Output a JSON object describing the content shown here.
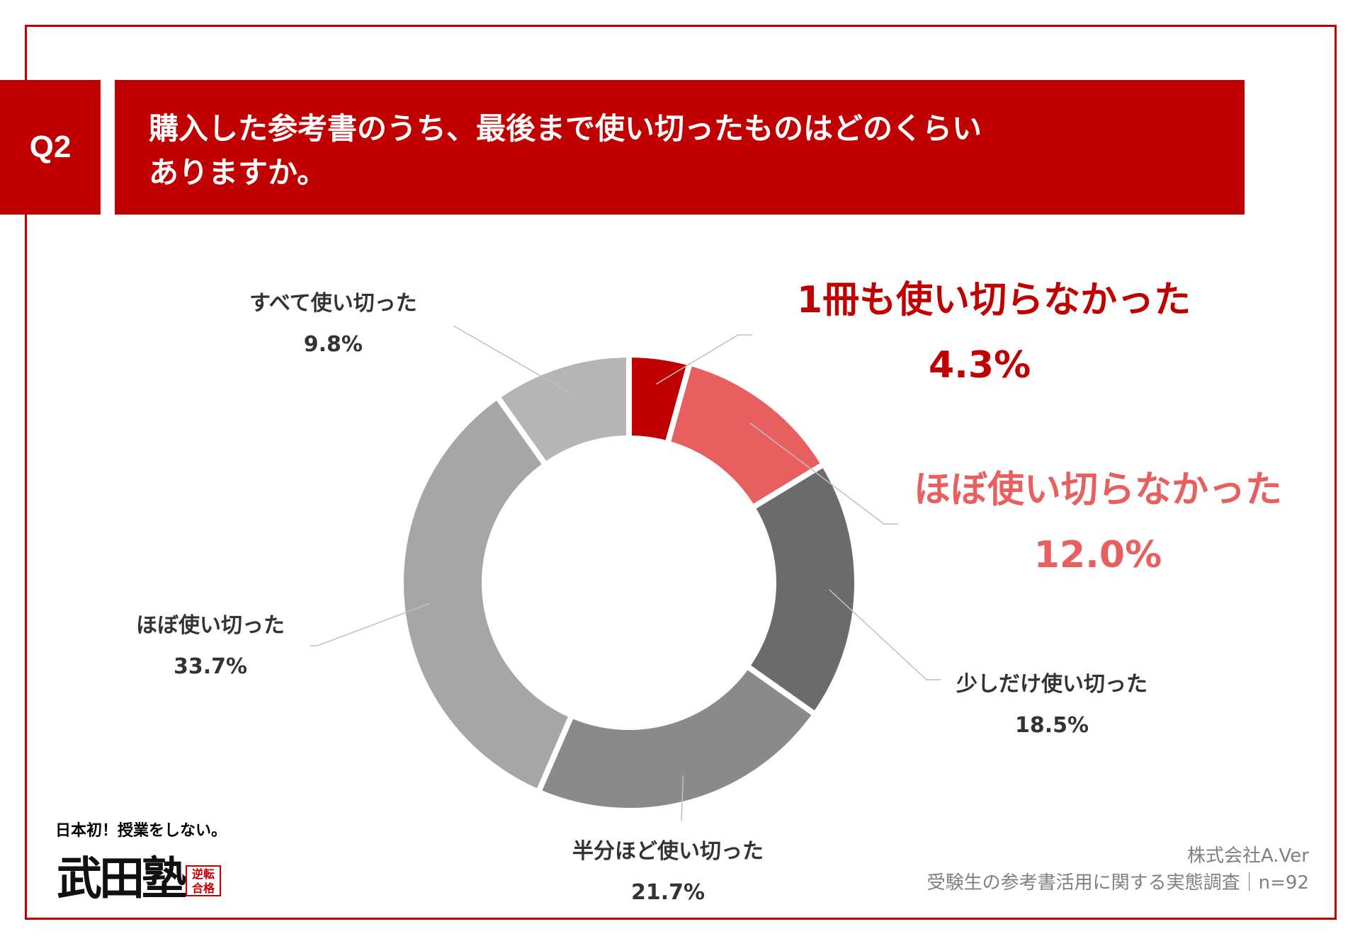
{
  "question": {
    "label": "Q2",
    "title_line1": "購入した参考書のうち、最後まで使い切ったものはどのくらい",
    "title_line2": "ありますか。"
  },
  "chart_data": {
    "type": "pie",
    "style": "donut",
    "title": "購入した参考書のうち、最後まで使い切ったものはどのくらいありますか。",
    "categories": [
      "1冊も使い切らなかった",
      "ほぼ使い切らなかった",
      "少しだけ使い切った",
      "半分ほど使い切った",
      "ほぼ使い切った",
      "すべて使い切った"
    ],
    "values": [
      4.3,
      12.0,
      18.5,
      21.7,
      33.7,
      9.8
    ],
    "value_labels": [
      "4.3%",
      "12.0%",
      "18.5%",
      "21.7%",
      "33.7%",
      "9.8%"
    ],
    "colors": [
      "#c00000",
      "#e85f5f",
      "#6b6b6b",
      "#8a8a8a",
      "#a6a6a6",
      "#b5b5b5"
    ]
  },
  "source": {
    "company": "株式会社A.Ver",
    "survey": "受験生の参考書活用に関する実態調査｜n=92"
  },
  "logo": {
    "caption": "日本初！授業をしない。",
    "name": "武田塾",
    "seal": "逆転合格"
  }
}
